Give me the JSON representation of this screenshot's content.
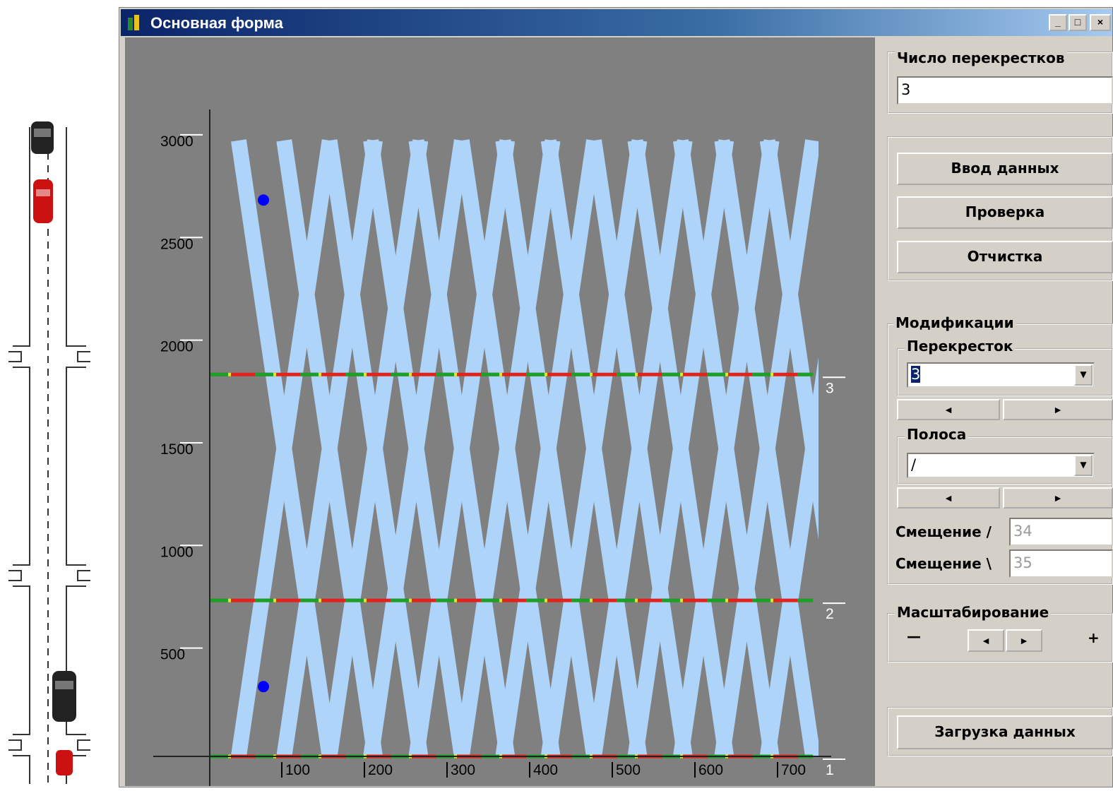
{
  "window": {
    "title": "Основная форма",
    "controls": {
      "minimize": "_",
      "maximize": "□",
      "close": "×"
    }
  },
  "panel": {
    "intersections_group": {
      "label": "Число перекрестков",
      "value": "3"
    },
    "buttons": {
      "data_entry": "Ввод данных",
      "check": "Проверка",
      "clear": "Отчистка",
      "load": "Загрузка данных"
    },
    "modifications": {
      "label": "Модификации",
      "intersection": {
        "label": "Перекресток",
        "value": "3"
      },
      "lane": {
        "label": "Полоса",
        "value": "/"
      },
      "offset_fwd": {
        "label": "Смещение /",
        "value": "34"
      },
      "offset_back": {
        "label": "Смещение \\",
        "value": "35"
      },
      "arrows": {
        "left": "◄",
        "right": "►"
      }
    },
    "scaling": {
      "label": "Масштабирование",
      "minus": "—",
      "plus": "+",
      "left": "◄",
      "right": "►"
    }
  },
  "chart_data": {
    "type": "line",
    "y_ticks": [
      500,
      1000,
      1500,
      2000,
      2500,
      3000
    ],
    "x_ticks": [
      100,
      200,
      300,
      400,
      500,
      600,
      700
    ],
    "ylim": [
      0,
      3100
    ],
    "xlim": [
      0,
      730
    ],
    "intersections": [
      {
        "label": "1",
        "position": 0
      },
      {
        "label": "2",
        "position": 760
      },
      {
        "label": "3",
        "position": 1860
      }
    ],
    "green_wave": {
      "forward_starts": [
        35,
        90,
        145,
        195,
        250,
        305,
        355,
        410,
        465,
        515,
        570,
        620,
        675
      ],
      "backward_starts": [
        35,
        90,
        145,
        195,
        250,
        305,
        355,
        410,
        465,
        515,
        570,
        620,
        675
      ],
      "band_color": "#aed4fa",
      "dx_per_3000": 110
    },
    "markers": [
      {
        "x": 65,
        "y": 340
      },
      {
        "x": 65,
        "y": 2710
      }
    ],
    "colors": {
      "background": "#808080",
      "signal_red": "#e0241d",
      "signal_green": "#1aa12a",
      "signal_yellow": "#e8e21a",
      "marker": "#0000ff"
    }
  }
}
